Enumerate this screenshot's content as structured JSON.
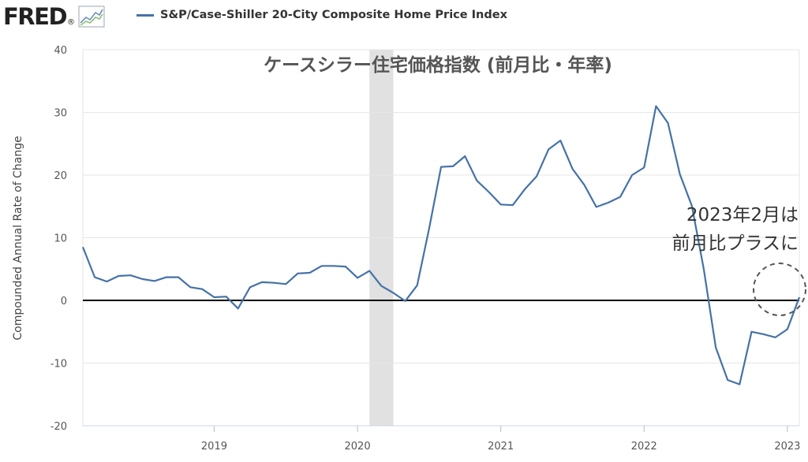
{
  "header": {
    "logo_text": "FRED",
    "legend_label": "S&P/Case-Shiller 20-City Composite Home Price Index",
    "legend_color": "#4572a7"
  },
  "chart_data": {
    "type": "line",
    "title": "ケースシラー住宅価格指数 (前月比・年率)",
    "ylabel": "Compounded Annual Rate of Change",
    "xlabel": "",
    "ylim": [
      -20,
      40
    ],
    "yticks": [
      -20,
      -10,
      0,
      10,
      20,
      30,
      40
    ],
    "xlim": [
      "2018-02",
      "2023-02"
    ],
    "xticks": [
      "2019",
      "2020",
      "2021",
      "2022",
      "2023"
    ],
    "grid": true,
    "recession": {
      "start": "2020-02",
      "end": "2020-04",
      "color": "#e1e1e1"
    },
    "zero_line": true,
    "series": [
      {
        "color": "#4572a7",
        "x": [
          "2018-02",
          "2018-03",
          "2018-04",
          "2018-05",
          "2018-06",
          "2018-07",
          "2018-08",
          "2018-09",
          "2018-10",
          "2018-11",
          "2018-12",
          "2019-01",
          "2019-02",
          "2019-03",
          "2019-04",
          "2019-05",
          "2019-06",
          "2019-07",
          "2019-08",
          "2019-09",
          "2019-10",
          "2019-11",
          "2019-12",
          "2020-01",
          "2020-02",
          "2020-03",
          "2020-04",
          "2020-05",
          "2020-06",
          "2020-07",
          "2020-08",
          "2020-09",
          "2020-10",
          "2020-11",
          "2020-12",
          "2021-01",
          "2021-02",
          "2021-03",
          "2021-04",
          "2021-05",
          "2021-06",
          "2021-07",
          "2021-08",
          "2021-09",
          "2021-10",
          "2021-11",
          "2021-12",
          "2022-01",
          "2022-02",
          "2022-03",
          "2022-04",
          "2022-05",
          "2022-06",
          "2022-07",
          "2022-08",
          "2022-09",
          "2022-10",
          "2022-11",
          "2022-12",
          "2023-01",
          "2023-02"
        ],
        "values": [
          8.5,
          3.7,
          3.0,
          3.9,
          4.0,
          3.4,
          3.1,
          3.7,
          3.7,
          2.1,
          1.8,
          0.5,
          0.6,
          -1.3,
          2.1,
          2.9,
          2.8,
          2.6,
          4.3,
          4.4,
          5.5,
          5.5,
          5.4,
          3.6,
          4.7,
          2.3,
          1.2,
          -0.1,
          2.4,
          11.5,
          21.3,
          21.4,
          23.0,
          19.1,
          17.3,
          15.3,
          15.2,
          17.7,
          19.8,
          24.1,
          25.5,
          21.0,
          18.4,
          14.9,
          15.6,
          16.5,
          20.0,
          21.2,
          31.0,
          28.3,
          20.1,
          15.1,
          5.0,
          -7.5,
          -12.7,
          -13.4,
          -5.0,
          -5.4,
          -5.9,
          -4.6,
          0.5
        ]
      }
    ],
    "annotations": [
      {
        "lines": [
          "2023年2月は",
          "前月比プラスに"
        ]
      }
    ]
  }
}
